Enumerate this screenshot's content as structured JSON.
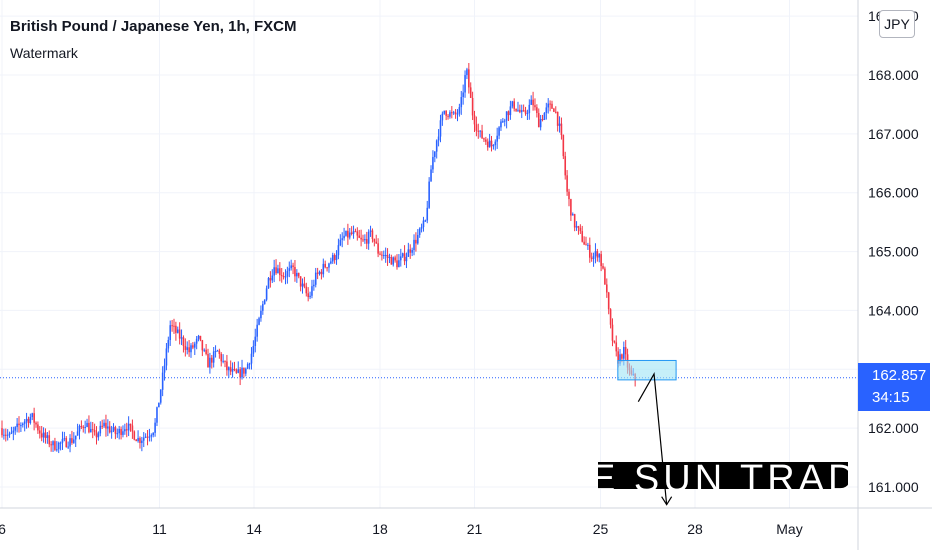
{
  "header": {
    "title": "British Pound / Japanese Yen, 1h, FXCM",
    "subtitle": "Watermark",
    "currency": "JPY"
  },
  "price_tag": {
    "price": "162.857",
    "countdown": "34:15"
  },
  "watermark": {
    "text": "E SUN TRADI"
  },
  "colors": {
    "up": "#2962ff",
    "down": "#f23645",
    "grid": "#f0f3fa",
    "current_price_line": "#2962ff",
    "zone_fill": "#9fe4f5",
    "zone_border": "#2196f3"
  },
  "chart_data": {
    "type": "candlestick",
    "title": "British Pound / Japanese Yen, 1h, FXCM",
    "symbol": "GBPJPY",
    "timeframe": "1h",
    "currency": "JPY",
    "current_price": 162.857,
    "ylim": [
      160.7,
      168.9
    ],
    "y_ticks": [
      {
        "value": 161,
        "label": "161.000"
      },
      {
        "value": 162,
        "label": "162.000"
      },
      {
        "value": 163,
        "label": "163.000"
      },
      {
        "value": 164,
        "label": "164.000"
      },
      {
        "value": 165,
        "label": "165.000"
      },
      {
        "value": 166,
        "label": "166.000"
      },
      {
        "value": 167,
        "label": "167.000"
      },
      {
        "value": 168,
        "label": "168.000"
      },
      {
        "value": 169,
        "label": "169.000"
      }
    ],
    "x_ticks": [
      {
        "day": 6,
        "label": "6"
      },
      {
        "day": 11,
        "label": "11"
      },
      {
        "day": 14,
        "label": "14"
      },
      {
        "day": 18,
        "label": "18"
      },
      {
        "day": 21,
        "label": "21"
      },
      {
        "day": 25,
        "label": "25"
      },
      {
        "day": 28,
        "label": "28"
      },
      {
        "day": 31,
        "label": "May"
      }
    ],
    "xlim": [
      6,
      32.2
    ],
    "price_path": [
      [
        6.0,
        162.0
      ],
      [
        6.3,
        161.85
      ],
      [
        6.7,
        162.1
      ],
      [
        7.0,
        162.2
      ],
      [
        7.3,
        161.9
      ],
      [
        7.7,
        161.7
      ],
      [
        8.0,
        161.75
      ],
      [
        8.3,
        161.8
      ],
      [
        8.7,
        162.1
      ],
      [
        9.0,
        161.85
      ],
      [
        9.3,
        162.05
      ],
      [
        9.7,
        161.9
      ],
      [
        10.0,
        162.05
      ],
      [
        10.4,
        161.8
      ],
      [
        10.7,
        161.9
      ],
      [
        10.9,
        162.0
      ],
      [
        11.2,
        163.0
      ],
      [
        11.4,
        163.75
      ],
      [
        11.7,
        163.55
      ],
      [
        12.0,
        163.3
      ],
      [
        12.3,
        163.5
      ],
      [
        12.6,
        163.1
      ],
      [
        12.9,
        163.3
      ],
      [
        13.2,
        163.0
      ],
      [
        13.5,
        162.9
      ],
      [
        13.8,
        163.0
      ],
      [
        14.0,
        163.3
      ],
      [
        14.3,
        164.0
      ],
      [
        14.5,
        164.5
      ],
      [
        14.7,
        164.75
      ],
      [
        15.0,
        164.6
      ],
      [
        15.3,
        164.7
      ],
      [
        15.6,
        164.4
      ],
      [
        15.8,
        164.2
      ],
      [
        16.0,
        164.55
      ],
      [
        16.3,
        164.75
      ],
      [
        16.6,
        164.9
      ],
      [
        16.9,
        165.25
      ],
      [
        17.2,
        165.3
      ],
      [
        17.5,
        165.15
      ],
      [
        17.8,
        165.3
      ],
      [
        18.0,
        165.0
      ],
      [
        18.3,
        164.9
      ],
      [
        18.6,
        164.8
      ],
      [
        18.9,
        164.95
      ],
      [
        19.2,
        165.2
      ],
      [
        19.5,
        165.5
      ],
      [
        19.7,
        166.5
      ],
      [
        19.9,
        167.0
      ],
      [
        20.1,
        167.4
      ],
      [
        20.4,
        167.3
      ],
      [
        20.6,
        167.4
      ],
      [
        20.8,
        168.1
      ],
      [
        21.0,
        167.35
      ],
      [
        21.2,
        167.0
      ],
      [
        21.4,
        166.9
      ],
      [
        21.6,
        166.8
      ],
      [
        21.8,
        167.05
      ],
      [
        22.0,
        167.3
      ],
      [
        22.3,
        167.5
      ],
      [
        22.6,
        167.3
      ],
      [
        22.9,
        167.55
      ],
      [
        23.1,
        167.2
      ],
      [
        23.4,
        167.45
      ],
      [
        23.6,
        167.45
      ],
      [
        23.8,
        167.0
      ],
      [
        24.0,
        166.0
      ],
      [
        24.2,
        165.5
      ],
      [
        24.4,
        165.3
      ],
      [
        24.6,
        165.1
      ],
      [
        24.8,
        164.9
      ],
      [
        25.0,
        165.0
      ],
      [
        25.2,
        164.5
      ],
      [
        25.4,
        163.6
      ],
      [
        25.6,
        163.15
      ],
      [
        25.8,
        163.3
      ],
      [
        26.0,
        162.9
      ],
      [
        26.1,
        162.85
      ]
    ]
  }
}
